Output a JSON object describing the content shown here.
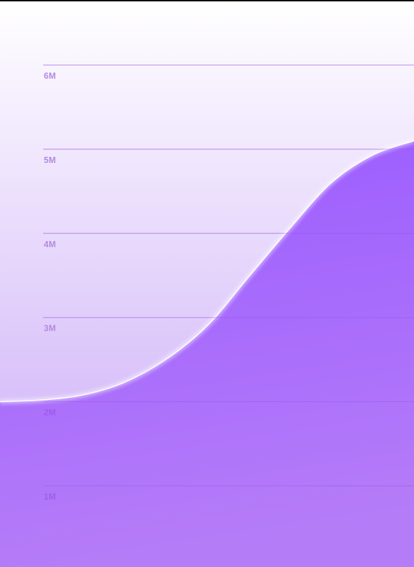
{
  "chart_data": {
    "type": "area",
    "title": "",
    "xlabel": "",
    "ylabel": "",
    "ylim": [
      0,
      6000000
    ],
    "y_ticks": [
      {
        "value": 6000000,
        "label": "6M"
      },
      {
        "value": 5000000,
        "label": "5M"
      },
      {
        "value": 4000000,
        "label": "4M"
      },
      {
        "value": 3000000,
        "label": "3M"
      },
      {
        "value": 2000000,
        "label": "2M"
      },
      {
        "value": 1000000,
        "label": "1M"
      }
    ],
    "grid": true,
    "legend": "none",
    "series": [
      {
        "x": [
          0,
          0.1,
          0.2,
          0.3,
          0.4,
          0.5,
          0.6,
          0.7,
          0.8,
          0.9,
          1.0
        ],
        "values": [
          2000000,
          2020000,
          2080000,
          2230000,
          2500000,
          2900000,
          3480000,
          4060000,
          4600000,
          4930000,
          5100000
        ]
      }
    ]
  },
  "colors": {
    "background_top": "#ffffff",
    "background_bottom": "#c8a6f7",
    "area_top": "#9b5cff",
    "area_bottom": "#b57cf8",
    "gridline": "#cfa8ea",
    "tick_label_above": "#b48ae0",
    "tick_label_below": "#9a55e8",
    "curve_highlight": "#ffffff"
  }
}
